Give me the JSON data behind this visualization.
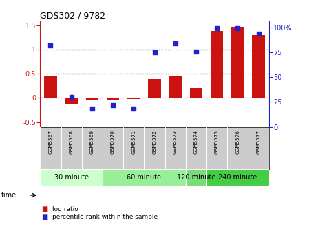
{
  "title": "GDS302 / 9782",
  "samples": [
    "GSM5567",
    "GSM5568",
    "GSM5569",
    "GSM5570",
    "GSM5571",
    "GSM5572",
    "GSM5573",
    "GSM5574",
    "GSM5575",
    "GSM5576",
    "GSM5577"
  ],
  "log_ratio": [
    0.46,
    -0.13,
    -0.04,
    -0.04,
    -0.02,
    0.39,
    0.45,
    0.2,
    1.39,
    1.48,
    1.3
  ],
  "percentile": [
    82,
    30,
    18,
    22,
    18,
    75,
    84,
    76,
    99,
    99,
    94
  ],
  "groups": [
    {
      "label": "30 minute",
      "indices": [
        0,
        1,
        2
      ],
      "color": "#ccffcc"
    },
    {
      "label": "60 minute",
      "indices": [
        3,
        4,
        5,
        6
      ],
      "color": "#99ee99"
    },
    {
      "label": "120 minute",
      "indices": [
        7
      ],
      "color": "#77dd77"
    },
    {
      "label": "240 minute",
      "indices": [
        8,
        9,
        10
      ],
      "color": "#44cc44"
    }
  ],
  "ylim_left": [
    -0.6,
    1.6
  ],
  "ylim_right": [
    0,
    106.67
  ],
  "yticks_left": [
    -0.5,
    0.0,
    0.5,
    1.0,
    1.5
  ],
  "ytick_labels_left": [
    "-0.5",
    "0",
    "0.5",
    "1",
    "1.5"
  ],
  "yticks_right": [
    0,
    25,
    50,
    75,
    100
  ],
  "ytick_labels_right": [
    "0",
    "25",
    "50",
    "75",
    "100%"
  ],
  "bar_color": "#cc1111",
  "dot_color": "#2222cc",
  "zero_line_color": "#cc1111",
  "dotted_line_color": "#111111",
  "sample_bg_color": "#cccccc",
  "bg_color": "#ffffff",
  "label_log_ratio": "log ratio",
  "label_percentile": "percentile rank within the sample",
  "time_label": "time"
}
